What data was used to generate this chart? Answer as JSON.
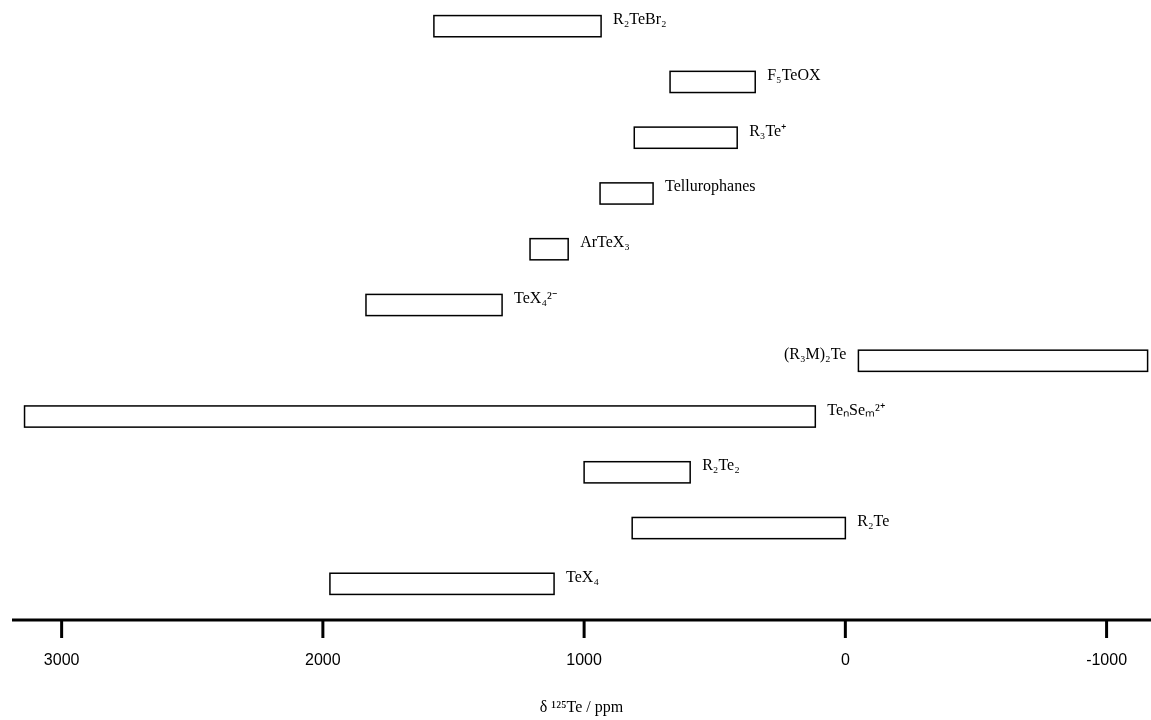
{
  "chart_data": {
    "type": "bar",
    "orientation": "horizontal",
    "xlabel": "δ ¹²⁵Te / ppm",
    "categories": [
      "R₂TeBr₂",
      "F₅TeOX",
      "R₃Te⁺",
      "Tellurophanes",
      "ArTeX₃",
      "TeX₄²⁻",
      "(R₃M)₂Te",
      "TeₙSeₘ²⁺",
      "R₂Te₂",
      "R₂Te",
      "TeX₄"
    ],
    "base": [
      935,
      345,
      414,
      736,
      1061,
      1314,
      -1157,
      115,
      594,
      0,
      1115
    ],
    "values": [
      640,
      326,
      394,
      203,
      146,
      521,
      1107,
      3027,
      406,
      816,
      858
    ],
    "color": "#000000",
    "xlim": [
      3190,
      -1170
    ],
    "xticks": [
      3000,
      2000,
      1000,
      0,
      -1000
    ],
    "tick_labels": "x"
  }
}
